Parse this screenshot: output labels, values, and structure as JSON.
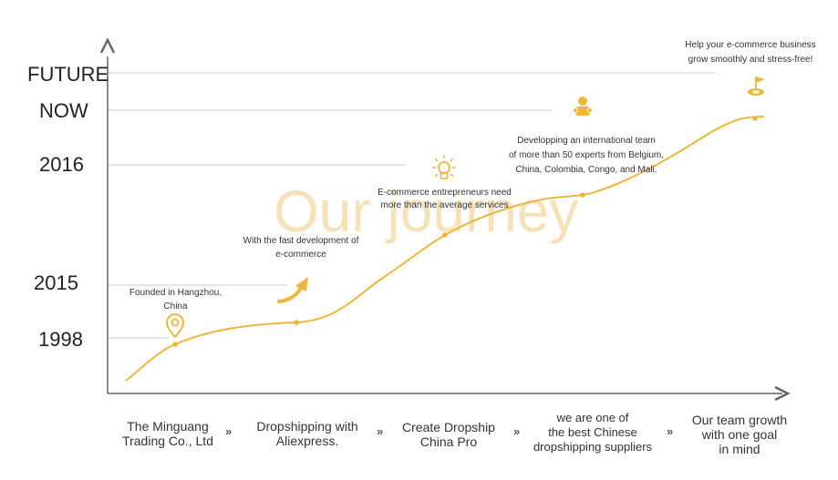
{
  "watermark": "Our journey",
  "y_axis_labels": {
    "future": "FUTURE",
    "now": "NOW",
    "y2016": "2016",
    "y2015": "2015",
    "y1998": "1998"
  },
  "annotations": {
    "founded": [
      "Founded in Hangzhou,",
      "China"
    ],
    "development": [
      "With the fast development of",
      "e-commerce"
    ],
    "entrepreneurs": [
      "E-commerce entrepreneurs need",
      "more than the average services"
    ],
    "team": [
      "Developping an international team",
      "of more than 50 experts from Belgium,",
      "China, Colombia, Congo, and Mali."
    ],
    "help": [
      "Help your e-commerce business",
      "grow smoothly and stress-free!"
    ]
  },
  "steps": [
    [
      "The Minguang",
      "Trading Co., Ltd"
    ],
    [
      "Dropshipping with",
      "Aliexpress."
    ],
    [
      "Create Dropship",
      "China Pro"
    ],
    [
      "we are one of",
      "the best Chinese",
      "dropshipping suppliers"
    ],
    [
      "Our team growth",
      "with one goal",
      "in mind"
    ]
  ],
  "chevron": "»",
  "icons": [
    "location-pin-icon",
    "curved-arrow-icon",
    "lightbulb-icon",
    "team-icon",
    "flag-target-icon"
  ],
  "colors": {
    "accent": "#f0b63c",
    "axis": "#666666",
    "guide": "#cccccc",
    "watermark": "#f6e2b8"
  }
}
